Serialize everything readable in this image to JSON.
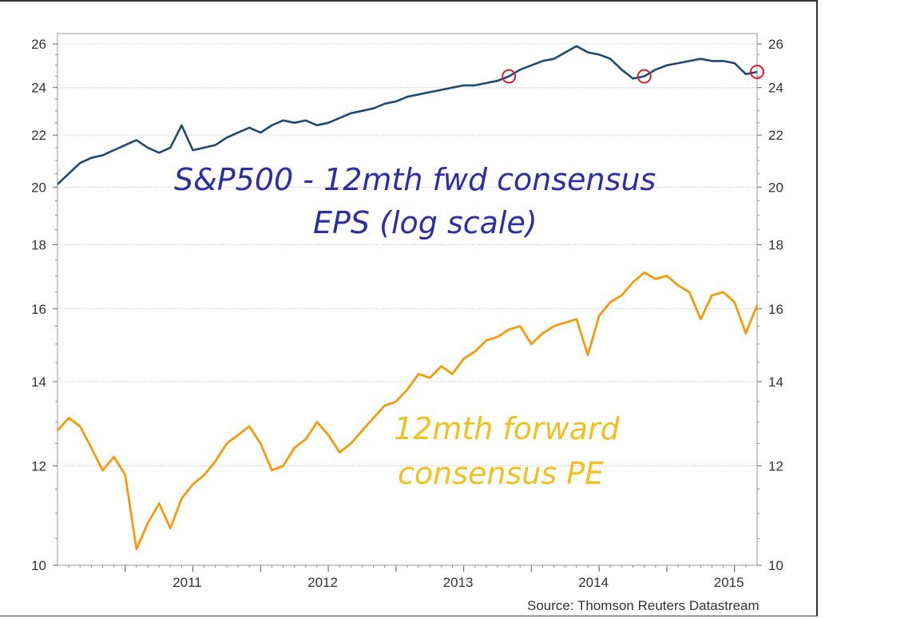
{
  "source": "Source: Thomson Reuters Datastream",
  "annotations": {
    "eps_line1": "S&P500 - 12mth fwd consensus",
    "eps_line2": "EPS (log scale)",
    "pe_line1": "12mth forward",
    "pe_line2": "consensus PE"
  },
  "chart_data": {
    "type": "line",
    "title": "",
    "x_ticks": [
      "2011",
      "2012",
      "2013",
      "2014",
      "2015"
    ],
    "xlim": [
      "2010-07",
      "2015-09"
    ],
    "y_scale": "log",
    "ylim": [
      10,
      26.5
    ],
    "y_ticks": [
      10,
      12,
      14,
      16,
      18,
      20,
      22,
      24,
      26
    ],
    "grid": "horizontal dotted",
    "colors": {
      "eps": "#1c4a73",
      "pe": "#f59a0a",
      "circle": "#d62030"
    },
    "series": [
      {
        "key": "eps",
        "x": [
          "2010-07",
          "2010-08",
          "2010-09",
          "2010-10",
          "2010-11",
          "2010-12",
          "2011-01",
          "2011-02",
          "2011-03",
          "2011-04",
          "2011-05",
          "2011-06",
          "2011-07",
          "2011-08",
          "2011-09",
          "2011-10",
          "2011-11",
          "2011-12",
          "2012-01",
          "2012-02",
          "2012-03",
          "2012-04",
          "2012-05",
          "2012-06",
          "2012-07",
          "2012-08",
          "2012-09",
          "2012-10",
          "2012-11",
          "2012-12",
          "2013-01",
          "2013-02",
          "2013-03",
          "2013-04",
          "2013-05",
          "2013-06",
          "2013-07",
          "2013-08",
          "2013-09",
          "2013-10",
          "2013-11",
          "2013-12",
          "2014-01",
          "2014-02",
          "2014-03",
          "2014-04",
          "2014-05",
          "2014-06",
          "2014-07",
          "2014-08",
          "2014-09",
          "2014-10",
          "2014-11",
          "2014-12",
          "2015-01",
          "2015-02",
          "2015-03",
          "2015-04",
          "2015-05",
          "2015-06",
          "2015-07",
          "2015-08",
          "2015-09"
        ],
        "values": [
          20.1,
          20.5,
          20.9,
          21.1,
          21.2,
          21.4,
          21.6,
          21.8,
          21.5,
          21.3,
          21.5,
          22.4,
          21.4,
          21.5,
          21.6,
          21.9,
          22.1,
          22.3,
          22.1,
          22.4,
          22.6,
          22.5,
          22.6,
          22.4,
          22.5,
          22.7,
          22.9,
          23.0,
          23.1,
          23.3,
          23.4,
          23.6,
          23.7,
          23.8,
          23.9,
          24.0,
          24.1,
          24.1,
          24.2,
          24.3,
          24.5,
          24.8,
          25.0,
          25.2,
          25.3,
          25.6,
          25.9,
          25.6,
          25.5,
          25.3,
          24.8,
          24.4,
          24.5,
          24.8,
          25.0,
          25.1,
          25.2,
          25.3,
          25.2,
          25.2,
          25.1,
          24.6,
          24.7
        ]
      },
      {
        "key": "pe",
        "x": [
          "2010-07",
          "2010-08",
          "2010-09",
          "2010-10",
          "2010-11",
          "2010-12",
          "2011-01",
          "2011-02",
          "2011-03",
          "2011-04",
          "2011-05",
          "2011-06",
          "2011-07",
          "2011-08",
          "2011-09",
          "2011-10",
          "2011-11",
          "2011-12",
          "2012-01",
          "2012-02",
          "2012-03",
          "2012-04",
          "2012-05",
          "2012-06",
          "2012-07",
          "2012-08",
          "2012-09",
          "2012-10",
          "2012-11",
          "2012-12",
          "2013-01",
          "2013-02",
          "2013-03",
          "2013-04",
          "2013-05",
          "2013-06",
          "2013-07",
          "2013-08",
          "2013-09",
          "2013-10",
          "2013-11",
          "2013-12",
          "2014-01",
          "2014-02",
          "2014-03",
          "2014-04",
          "2014-05",
          "2014-06",
          "2014-07",
          "2014-08",
          "2014-09",
          "2014-10",
          "2014-11",
          "2014-12",
          "2015-01",
          "2015-02",
          "2015-03",
          "2015-04",
          "2015-05",
          "2015-06",
          "2015-07",
          "2015-08",
          "2015-09"
        ],
        "values": [
          12.8,
          13.1,
          12.9,
          12.4,
          11.9,
          12.2,
          11.8,
          10.3,
          10.8,
          11.2,
          10.7,
          11.3,
          11.6,
          11.8,
          12.1,
          12.5,
          12.7,
          12.9,
          12.5,
          11.9,
          12.0,
          12.4,
          12.6,
          13.0,
          12.7,
          12.3,
          12.5,
          12.8,
          13.1,
          13.4,
          13.5,
          13.8,
          14.2,
          14.1,
          14.4,
          14.2,
          14.6,
          14.8,
          15.1,
          15.2,
          15.4,
          15.5,
          15.0,
          15.3,
          15.5,
          15.6,
          15.7,
          14.7,
          15.8,
          16.2,
          16.4,
          16.8,
          17.1,
          16.9,
          17.0,
          16.7,
          16.5,
          15.7,
          16.4,
          16.5,
          16.2,
          15.3,
          16.1
        ]
      }
    ],
    "circled_points": [
      {
        "series": "eps",
        "x": "2013-11"
      },
      {
        "series": "eps",
        "x": "2014-11"
      },
      {
        "series": "eps",
        "x": "2015-09"
      }
    ]
  }
}
